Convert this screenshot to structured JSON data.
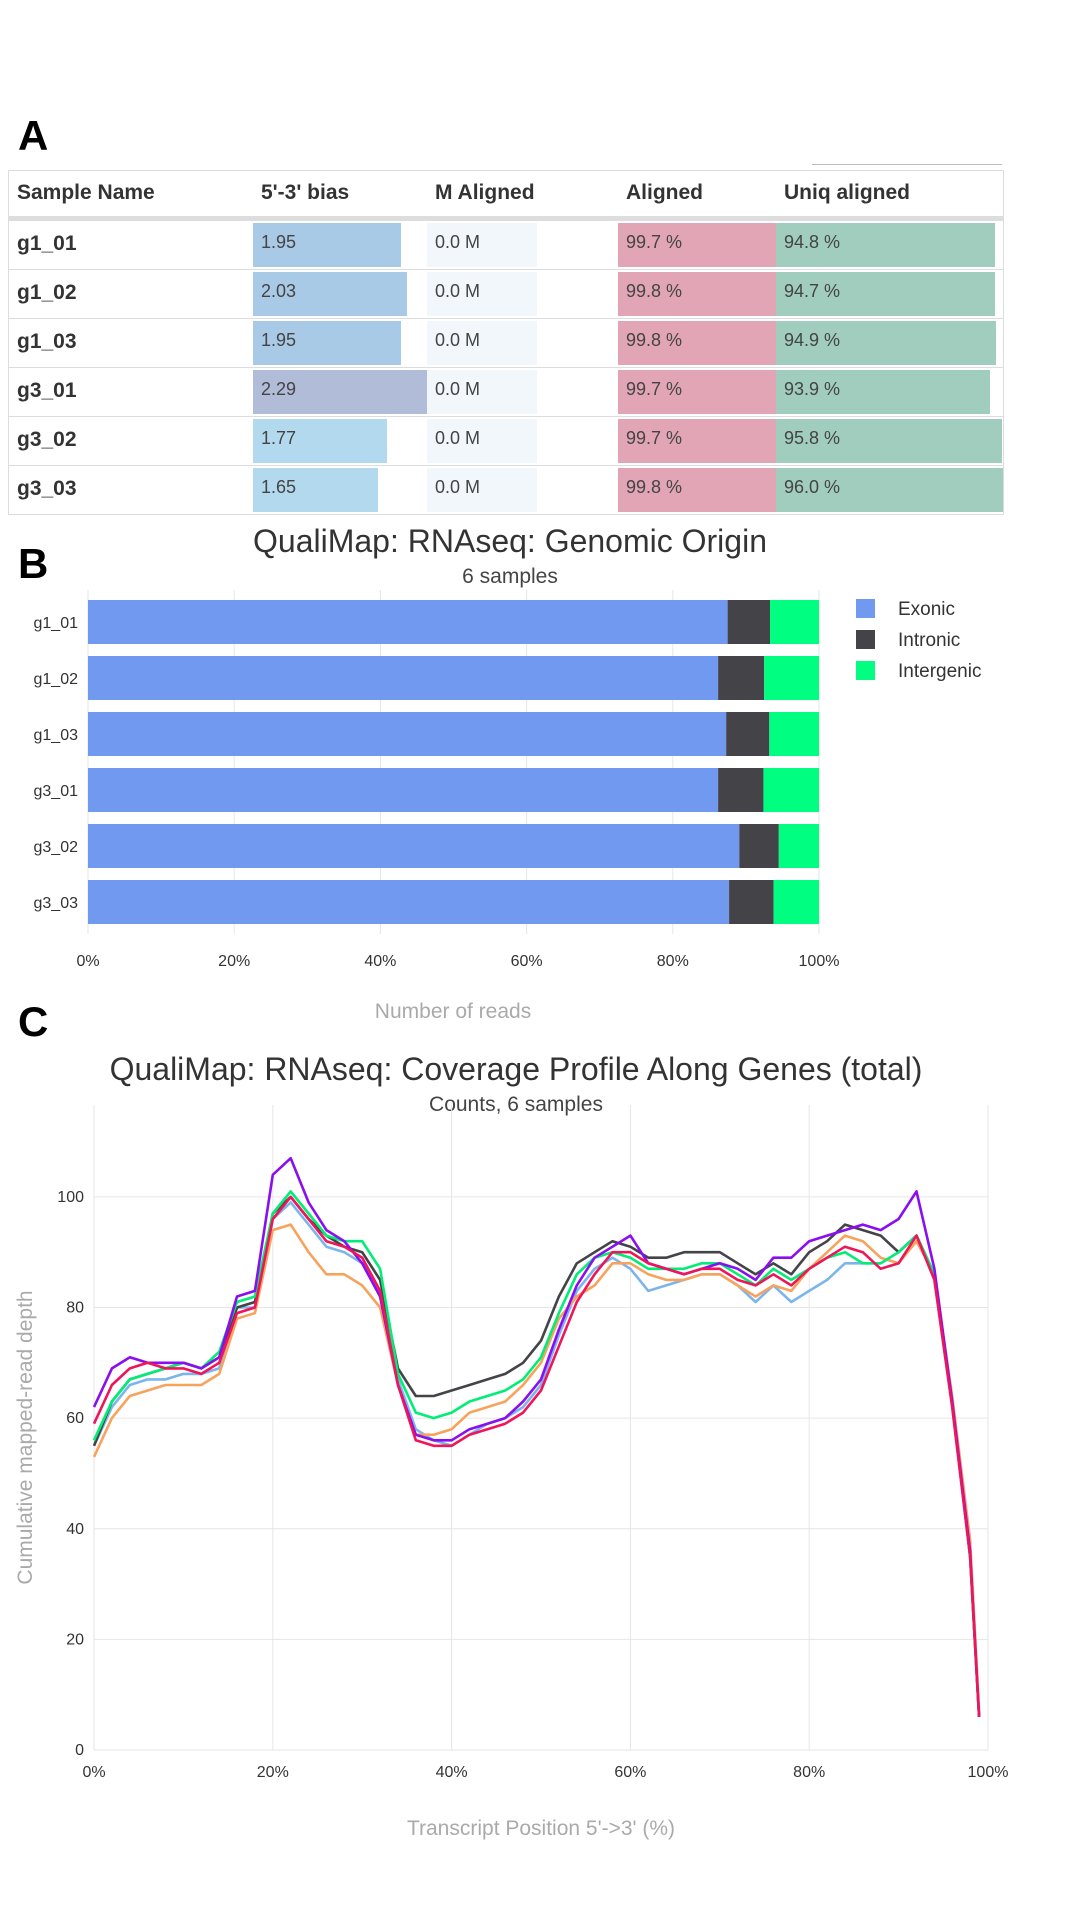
{
  "panels": {
    "a": "A",
    "b": "B",
    "c": "C"
  },
  "table": {
    "headers": [
      "Sample Name",
      "5'-3' bias",
      "M Aligned",
      "Aligned",
      "Uniq aligned"
    ],
    "rows": [
      {
        "name": "g1_01",
        "bias": "1.95",
        "bias_value": 1.95,
        "m_aligned": "0.0 M",
        "aligned": "99.7 %",
        "uniq": "94.8 %",
        "uniq_value": 94.8
      },
      {
        "name": "g1_02",
        "bias": "2.03",
        "bias_value": 2.03,
        "m_aligned": "0.0 M",
        "aligned": "99.8 %",
        "uniq": "94.7 %",
        "uniq_value": 94.7
      },
      {
        "name": "g1_03",
        "bias": "1.95",
        "bias_value": 1.95,
        "m_aligned": "0.0 M",
        "aligned": "99.8 %",
        "uniq": "94.9 %",
        "uniq_value": 94.9
      },
      {
        "name": "g3_01",
        "bias": "2.29",
        "bias_value": 2.29,
        "m_aligned": "0.0 M",
        "aligned": "99.7 %",
        "uniq": "93.9 %",
        "uniq_value": 93.9
      },
      {
        "name": "g3_02",
        "bias": "1.77",
        "bias_value": 1.77,
        "m_aligned": "0.0 M",
        "aligned": "99.7 %",
        "uniq": "95.8 %",
        "uniq_value": 95.8
      },
      {
        "name": "g3_03",
        "bias": "1.65",
        "bias_value": 1.65,
        "m_aligned": "0.0 M",
        "aligned": "99.8 %",
        "uniq": "96.0 %",
        "uniq_value": 96.0
      }
    ],
    "colors": {
      "bias_high": "#b0bcd8",
      "bias_default": "#a8cae6",
      "bias_low": "#b3d9ef"
    }
  },
  "chart_data": [
    {
      "type": "bar",
      "stacked": true,
      "orientation": "horizontal",
      "title": "QualiMap: RNAseq: Genomic Origin",
      "subtitle": "6 samples",
      "xlabel": "Number of reads",
      "categories": [
        "g1_01",
        "g1_02",
        "g1_03",
        "g3_01",
        "g3_02",
        "g3_03"
      ],
      "xlim": [
        0,
        100
      ],
      "xticks": [
        "0%",
        "20%",
        "40%",
        "60%",
        "80%",
        "100%"
      ],
      "legend_position": "top-right",
      "series": [
        {
          "name": "Exonic",
          "color": "#7199f0",
          "values": [
            87.5,
            86.2,
            87.3,
            86.2,
            89.1,
            87.7
          ]
        },
        {
          "name": "Intronic",
          "color": "#434348",
          "values": [
            5.8,
            6.3,
            5.9,
            6.2,
            5.4,
            6.1
          ]
        },
        {
          "name": "Intergenic",
          "color": "#00ff80",
          "values": [
            6.7,
            7.5,
            6.8,
            7.6,
            5.5,
            6.2
          ]
        }
      ]
    },
    {
      "type": "line",
      "title": "QualiMap: RNAseq: Coverage Profile Along Genes (total)",
      "subtitle": "Counts, 6 samples",
      "xlabel": "Transcript Position 5'->3' (%)",
      "ylabel": "Cumulative mapped-read depth",
      "xlim": [
        0,
        100
      ],
      "ylim": [
        0,
        113
      ],
      "xticks": [
        "0%",
        "20%",
        "40%",
        "60%",
        "80%",
        "100%"
      ],
      "yticks": [
        0,
        20,
        40,
        60,
        80,
        100
      ],
      "grid": true,
      "x": [
        0,
        2,
        4,
        6,
        8,
        10,
        12,
        14,
        16,
        18,
        20,
        22,
        24,
        26,
        28,
        30,
        32,
        34,
        36,
        38,
        40,
        42,
        44,
        46,
        48,
        50,
        52,
        54,
        56,
        58,
        60,
        62,
        64,
        66,
        68,
        70,
        72,
        74,
        76,
        78,
        80,
        82,
        84,
        86,
        88,
        90,
        92,
        94,
        96,
        98,
        99
      ],
      "series": [
        {
          "color": "#7cb5ec",
          "values": [
            55,
            62,
            66,
            67,
            67,
            68,
            68,
            69,
            80,
            80,
            96,
            99,
            95,
            91,
            90,
            88,
            82,
            67,
            58,
            56,
            55,
            57,
            59,
            60,
            62,
            66,
            75,
            83,
            87,
            89,
            87,
            83,
            84,
            85,
            86,
            86,
            84,
            81,
            84,
            81,
            83,
            85,
            88,
            88,
            88,
            90,
            93,
            85,
            62,
            35,
            6
          ]
        },
        {
          "color": "#434348",
          "values": [
            55,
            63,
            67,
            68,
            69,
            70,
            69,
            71,
            80,
            81,
            97,
            100,
            96,
            93,
            91,
            90,
            85,
            69,
            64,
            64,
            65,
            66,
            67,
            68,
            70,
            74,
            82,
            88,
            90,
            92,
            91,
            89,
            89,
            90,
            90,
            90,
            88,
            86,
            88,
            86,
            90,
            92,
            95,
            94,
            93,
            90,
            93,
            86,
            63,
            35,
            6
          ]
        },
        {
          "color": "#f7a35c",
          "values": [
            53,
            60,
            64,
            65,
            66,
            66,
            66,
            68,
            78,
            79,
            94,
            95,
            90,
            86,
            86,
            84,
            80,
            66,
            57,
            57,
            58,
            61,
            62,
            63,
            66,
            70,
            78,
            82,
            84,
            88,
            88,
            86,
            85,
            85,
            86,
            86,
            84,
            82,
            84,
            83,
            87,
            90,
            93,
            92,
            89,
            88,
            92,
            86,
            64,
            38,
            7
          ]
        },
        {
          "color": "#00ee76",
          "values": [
            56,
            63,
            67,
            68,
            69,
            70,
            69,
            72,
            81,
            82,
            97,
            101,
            97,
            93,
            92,
            92,
            87,
            68,
            61,
            60,
            61,
            63,
            64,
            65,
            67,
            71,
            79,
            86,
            89,
            90,
            89,
            87,
            87,
            87,
            88,
            88,
            86,
            84,
            87,
            85,
            87,
            89,
            90,
            88,
            88,
            90,
            93,
            86,
            63,
            35,
            6
          ]
        },
        {
          "color": "#8b0ef0",
          "values": [
            62,
            69,
            71,
            70,
            70,
            70,
            69,
            71,
            82,
            83,
            104,
            107,
            99,
            94,
            92,
            88,
            82,
            66,
            57,
            56,
            56,
            58,
            59,
            60,
            63,
            67,
            76,
            84,
            89,
            91,
            93,
            88,
            87,
            86,
            87,
            88,
            87,
            85,
            89,
            89,
            92,
            93,
            94,
            95,
            94,
            96,
            101,
            87,
            63,
            36,
            6
          ]
        },
        {
          "color": "#f0145a",
          "values": [
            59,
            66,
            69,
            70,
            69,
            69,
            68,
            70,
            79,
            80,
            96,
            100,
            96,
            92,
            91,
            89,
            83,
            66,
            56,
            55,
            55,
            57,
            58,
            59,
            61,
            65,
            73,
            81,
            86,
            90,
            90,
            88,
            87,
            86,
            87,
            87,
            85,
            84,
            86,
            84,
            87,
            89,
            91,
            90,
            87,
            88,
            93,
            85,
            62,
            35,
            6
          ]
        }
      ]
    }
  ]
}
